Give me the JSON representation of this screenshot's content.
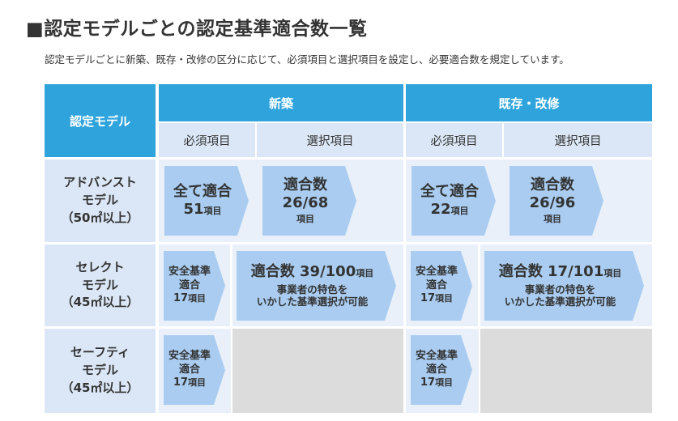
{
  "title": "■認定モデルごとの認定基準適合数一覧",
  "subtitle": "認定モデルごとに新築、既存・改修の区分に応じて、必須項目と選択項目を設定し、必要適合数を規定しています。",
  "table": {
    "corner": "認定モデル",
    "groups": [
      "新築",
      "既存・改修"
    ],
    "subheaders": [
      "必須項目",
      "選択項目",
      "必須項目",
      "選択項目"
    ],
    "rows": [
      {
        "name_lines": [
          "アドバンスト",
          "モデル",
          "（50㎡以上）"
        ],
        "new_required": {
          "line1": "全て適合",
          "num": "51",
          "unit": "項目"
        },
        "new_selective": {
          "line1": "適合数",
          "num": "26/68",
          "unit": "項目"
        },
        "existing_required": {
          "line1": "全て適合",
          "num": "22",
          "unit": "項目"
        },
        "existing_selective": {
          "line1": "適合数",
          "num": "26/96",
          "unit": "項目"
        }
      },
      {
        "name_lines": [
          "セレクト",
          "モデル",
          "（45㎡以上）"
        ],
        "new_required": {
          "line1": "安全基準",
          "line2": "適合",
          "num": "17",
          "unit": "項目"
        },
        "new_selective": {
          "prefix": "適合数 ",
          "num": "39/100",
          "unit": "項目",
          "note1": "事業者の特色を",
          "note2": "いかした基準選択が可能"
        },
        "existing_required": {
          "line1": "安全基準",
          "line2": "適合",
          "num": "17",
          "unit": "項目"
        },
        "existing_selective": {
          "prefix": "適合数 ",
          "num": "17/101",
          "unit": "項目",
          "note1": "事業者の特色を",
          "note2": "いかした基準選択が可能"
        }
      },
      {
        "name_lines": [
          "セーフティ",
          "モデル",
          "（45㎡以上）"
        ],
        "new_required": {
          "line1": "安全基準",
          "line2": "適合",
          "num": "17",
          "unit": "項目"
        },
        "existing_required": {
          "line1": "安全基準",
          "line2": "適合",
          "num": "17",
          "unit": "項目"
        }
      }
    ]
  }
}
